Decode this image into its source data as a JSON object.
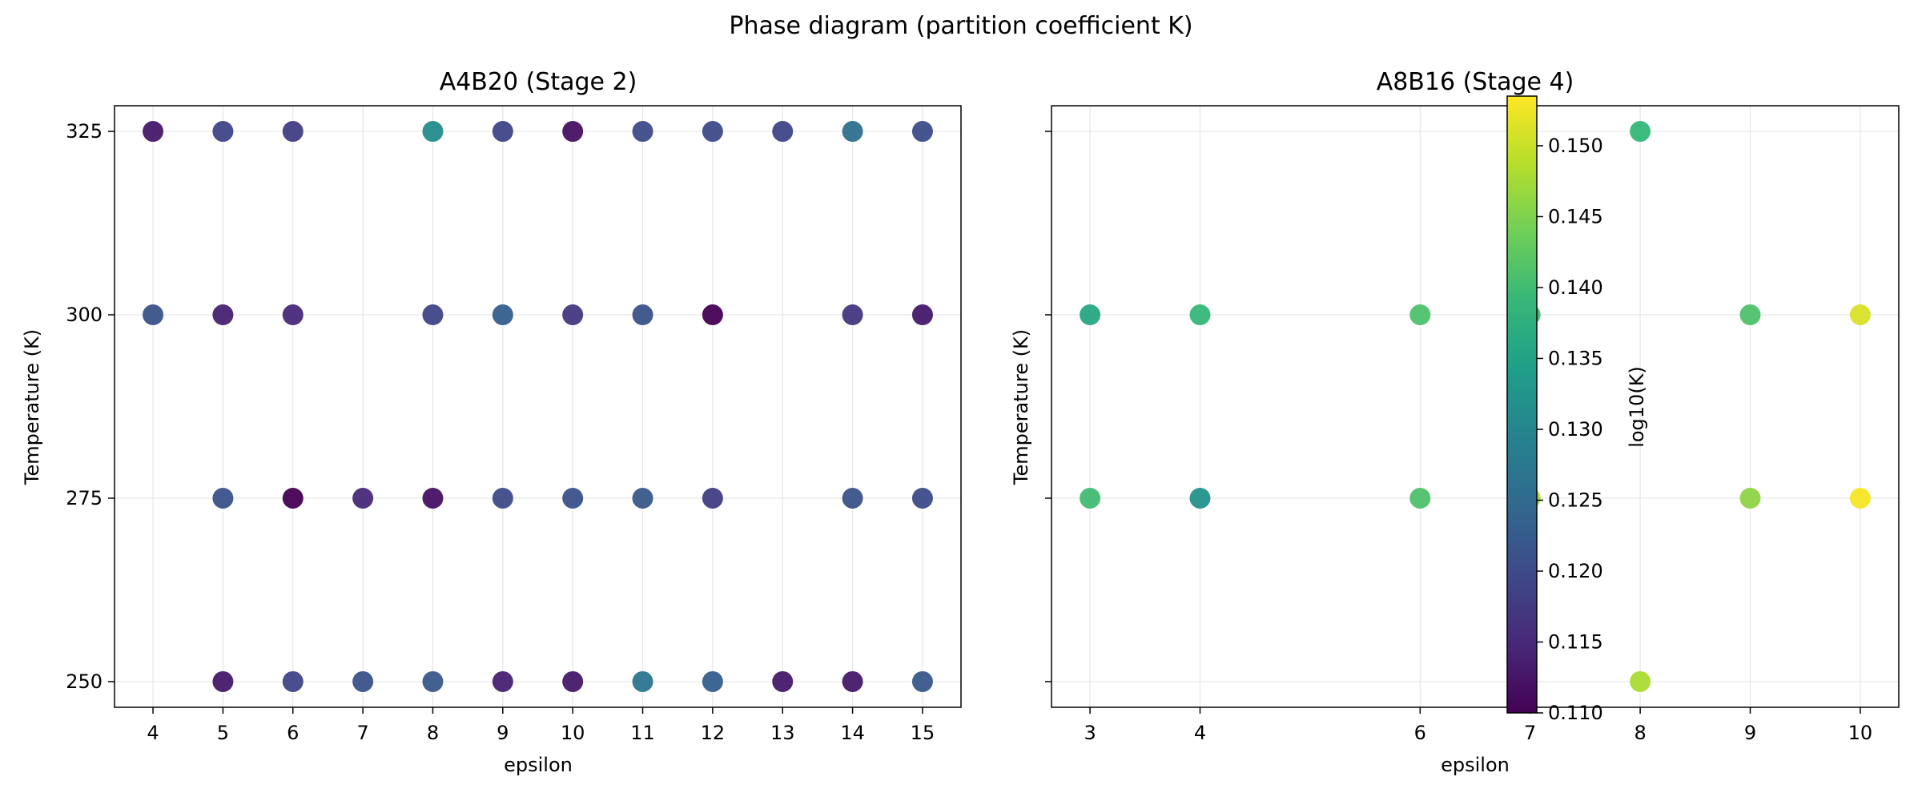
{
  "figure_title": "Phase diagram (partition coefficient K)",
  "colorbar": {
    "label": "log10(K)",
    "min": 0.11,
    "max": 0.1535,
    "ticks": [
      "0.110",
      "0.115",
      "0.120",
      "0.125",
      "0.130",
      "0.135",
      "0.140",
      "0.145",
      "0.150"
    ],
    "colormap": "viridis",
    "stops": [
      "#440154",
      "#482878",
      "#3e4989",
      "#31688e",
      "#26828e",
      "#1f9e89",
      "#35b779",
      "#6ece58",
      "#b5de2b",
      "#fde725"
    ]
  },
  "chart_data": [
    {
      "type": "scatter",
      "title": "A4B20 (Stage 2)",
      "xlabel": "epsilon",
      "ylabel": "Temperature (K)",
      "xlim": [
        3.45,
        15.55
      ],
      "ylim": [
        246.5,
        328.5
      ],
      "xticks": [
        4,
        5,
        6,
        7,
        8,
        9,
        10,
        11,
        12,
        13,
        14,
        15
      ],
      "yticks": [
        250,
        275,
        300,
        325
      ],
      "grid": true,
      "color_encodes": "log10(K)",
      "points": [
        {
          "x": 4,
          "y": 325,
          "c": 0.113
        },
        {
          "x": 5,
          "y": 325,
          "c": 0.119
        },
        {
          "x": 6,
          "y": 325,
          "c": 0.118
        },
        {
          "x": 8,
          "y": 325,
          "c": 0.131
        },
        {
          "x": 9,
          "y": 325,
          "c": 0.119
        },
        {
          "x": 10,
          "y": 325,
          "c": 0.112
        },
        {
          "x": 11,
          "y": 325,
          "c": 0.12
        },
        {
          "x": 12,
          "y": 325,
          "c": 0.12
        },
        {
          "x": 13,
          "y": 325,
          "c": 0.119
        },
        {
          "x": 14,
          "y": 325,
          "c": 0.126
        },
        {
          "x": 15,
          "y": 325,
          "c": 0.12
        },
        {
          "x": 4,
          "y": 300,
          "c": 0.121
        },
        {
          "x": 5,
          "y": 300,
          "c": 0.114
        },
        {
          "x": 6,
          "y": 300,
          "c": 0.115
        },
        {
          "x": 8,
          "y": 300,
          "c": 0.119
        },
        {
          "x": 9,
          "y": 300,
          "c": 0.123
        },
        {
          "x": 10,
          "y": 300,
          "c": 0.117
        },
        {
          "x": 11,
          "y": 300,
          "c": 0.121
        },
        {
          "x": 12,
          "y": 300,
          "c": 0.11
        },
        {
          "x": 14,
          "y": 300,
          "c": 0.117
        },
        {
          "x": 15,
          "y": 300,
          "c": 0.113
        },
        {
          "x": 5,
          "y": 275,
          "c": 0.121
        },
        {
          "x": 6,
          "y": 275,
          "c": 0.11
        },
        {
          "x": 7,
          "y": 275,
          "c": 0.115
        },
        {
          "x": 8,
          "y": 275,
          "c": 0.112
        },
        {
          "x": 9,
          "y": 275,
          "c": 0.12
        },
        {
          "x": 10,
          "y": 275,
          "c": 0.121
        },
        {
          "x": 11,
          "y": 275,
          "c": 0.122
        },
        {
          "x": 12,
          "y": 275,
          "c": 0.118
        },
        {
          "x": 14,
          "y": 275,
          "c": 0.121
        },
        {
          "x": 15,
          "y": 275,
          "c": 0.12
        },
        {
          "x": 5,
          "y": 250,
          "c": 0.113
        },
        {
          "x": 6,
          "y": 250,
          "c": 0.119
        },
        {
          "x": 7,
          "y": 250,
          "c": 0.121
        },
        {
          "x": 8,
          "y": 250,
          "c": 0.122
        },
        {
          "x": 9,
          "y": 250,
          "c": 0.114
        },
        {
          "x": 10,
          "y": 250,
          "c": 0.113
        },
        {
          "x": 11,
          "y": 250,
          "c": 0.127
        },
        {
          "x": 12,
          "y": 250,
          "c": 0.123
        },
        {
          "x": 13,
          "y": 250,
          "c": 0.113
        },
        {
          "x": 14,
          "y": 250,
          "c": 0.113
        },
        {
          "x": 15,
          "y": 250,
          "c": 0.122
        }
      ]
    },
    {
      "type": "scatter",
      "title": "A8B16 (Stage 4)",
      "xlabel": "epsilon",
      "ylabel": "Temperature (K)",
      "xlim": [
        2.65,
        10.35
      ],
      "ylim": [
        246.5,
        328.5
      ],
      "xticks": [
        3,
        4,
        6,
        7,
        8,
        9,
        10
      ],
      "yticks": [
        250,
        275,
        300,
        325
      ],
      "show_ytick_labels": false,
      "grid": true,
      "color_encodes": "log10(K)",
      "points": [
        {
          "x": 8,
          "y": 325,
          "c": 0.139
        },
        {
          "x": 3,
          "y": 300,
          "c": 0.136
        },
        {
          "x": 4,
          "y": 300,
          "c": 0.139
        },
        {
          "x": 6,
          "y": 300,
          "c": 0.141
        },
        {
          "x": 7,
          "y": 300,
          "c": 0.14
        },
        {
          "x": 9,
          "y": 300,
          "c": 0.141
        },
        {
          "x": 10,
          "y": 300,
          "c": 0.151
        },
        {
          "x": 3,
          "y": 275,
          "c": 0.14
        },
        {
          "x": 4,
          "y": 275,
          "c": 0.132
        },
        {
          "x": 6,
          "y": 275,
          "c": 0.141
        },
        {
          "x": 7,
          "y": 275,
          "c": 0.148
        },
        {
          "x": 9,
          "y": 275,
          "c": 0.146
        },
        {
          "x": 10,
          "y": 275,
          "c": 0.153
        },
        {
          "x": 8,
          "y": 250,
          "c": 0.148
        }
      ]
    }
  ]
}
